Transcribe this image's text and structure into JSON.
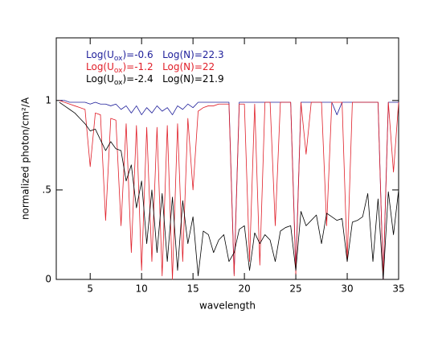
{
  "chart_data": {
    "type": "line",
    "x_label": "wavelength",
    "y_label": "normalized photon/cm²/A",
    "xlim": [
      1.7,
      35
    ],
    "xticks": [
      5,
      10,
      15,
      20,
      25,
      30,
      35
    ],
    "ylim": [
      0,
      1.35
    ],
    "yticks": [
      0,
      {
        "value": 0.5,
        "label": ".5"
      },
      1
    ],
    "x": [
      2,
      2.5,
      3,
      3.5,
      4,
      4.5,
      5,
      5.5,
      6,
      6.5,
      7,
      7.5,
      8,
      8.5,
      9,
      9.5,
      10,
      10.5,
      11,
      11.5,
      12,
      12.5,
      13,
      13.5,
      14,
      14.5,
      15,
      15.5,
      16,
      16.5,
      17,
      17.5,
      18,
      18.5,
      19,
      19.5,
      20,
      20.5,
      21,
      21.5,
      22,
      22.5,
      23,
      23.5,
      24,
      24.5,
      25,
      25.5,
      26,
      26.5,
      27,
      27.5,
      28,
      28.5,
      29,
      29.5,
      30,
      30.5,
      31,
      31.5,
      32,
      32.5,
      33,
      33.5,
      34,
      34.5,
      35
    ],
    "series": [
      {
        "name": "Log(Uox)=-0.6   Log(N)=22.3",
        "color": "#1e1e9a",
        "values": [
          1,
          1,
          0.99,
          0.99,
          0.99,
          0.99,
          0.98,
          0.99,
          0.98,
          0.98,
          0.97,
          0.98,
          0.95,
          0.97,
          0.93,
          0.97,
          0.92,
          0.96,
          0.93,
          0.97,
          0.94,
          0.96,
          0.92,
          0.97,
          0.95,
          0.98,
          0.96,
          0.99,
          0.99,
          0.99,
          0.99,
          0.99,
          0.99,
          0.99,
          0.03,
          0.99,
          0.99,
          0.99,
          0.99,
          0.99,
          0.99,
          0.99,
          0.99,
          0.99,
          0.99,
          0.99,
          0.05,
          0.99,
          0.99,
          0.99,
          0.99,
          0.99,
          0.99,
          0.99,
          0.92,
          0.99,
          0.99,
          0.99,
          0.99,
          0.99,
          0.99,
          0.99,
          0.99,
          0,
          0.99,
          0.99,
          0.99
        ]
      },
      {
        "name": "Log(Uox)=-1.2   Log(N)=22",
        "color": "#e01e28",
        "values": [
          1,
          0.99,
          0.98,
          0.97,
          0.96,
          0.95,
          0.63,
          0.93,
          0.92,
          0.33,
          0.9,
          0.89,
          0.3,
          0.87,
          0.15,
          0.86,
          0.05,
          0.85,
          0.1,
          0.85,
          0.02,
          0.86,
          0,
          0.87,
          0.1,
          0.9,
          0.5,
          0.94,
          0.96,
          0.97,
          0.97,
          0.98,
          0.98,
          0.98,
          0.02,
          0.98,
          0.98,
          0.1,
          0.98,
          0.08,
          0.99,
          0.99,
          0.3,
          0.99,
          0.99,
          0.99,
          0.03,
          0.99,
          0.7,
          0.99,
          0.99,
          0.99,
          0.3,
          0.99,
          0.99,
          0.99,
          0.1,
          0.99,
          0.99,
          0.99,
          0.99,
          0.99,
          0.99,
          0,
          0.99,
          0.6,
          0.99
        ]
      },
      {
        "name": "Log(Uox)=-2.4   Log(N)=21.9",
        "color": "#000000",
        "values": [
          0.99,
          0.97,
          0.95,
          0.93,
          0.9,
          0.87,
          0.83,
          0.84,
          0.78,
          0.72,
          0.77,
          0.73,
          0.72,
          0.55,
          0.64,
          0.4,
          0.55,
          0.2,
          0.5,
          0.15,
          0.48,
          0.1,
          0.46,
          0.05,
          0.44,
          0.2,
          0.35,
          0.02,
          0.27,
          0.25,
          0.15,
          0.22,
          0.25,
          0.1,
          0.15,
          0.28,
          0.3,
          0.05,
          0.26,
          0.2,
          0.25,
          0.22,
          0.1,
          0.27,
          0.29,
          0.3,
          0.05,
          0.38,
          0.3,
          0.33,
          0.36,
          0.2,
          0.37,
          0.35,
          0.33,
          0.34,
          0.1,
          0.32,
          0.33,
          0.35,
          0.48,
          0.1,
          0.45,
          0,
          0.49,
          0.25,
          0.5
        ]
      }
    ]
  }
}
